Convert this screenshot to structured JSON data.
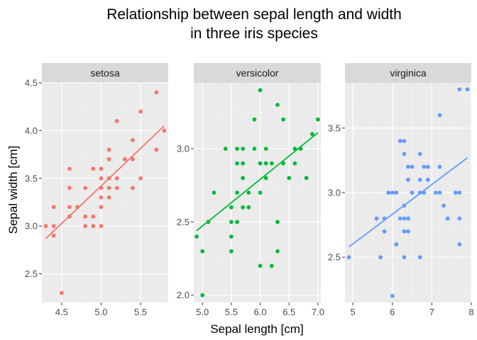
{
  "chart_data": {
    "type": "scatter",
    "title": [
      "Relationship between sepal length and width",
      "in three iris species"
    ],
    "xlabel": "Sepal length [cm]",
    "ylabel": "Sepal width [cm]",
    "grid": true,
    "legend": "none",
    "facets": [
      {
        "name": "setosa",
        "color": "#F8766D",
        "xlim": [
          4.25,
          5.85
        ],
        "ylim": [
          2.2,
          4.5
        ],
        "xticks": [
          {
            "value": 4.5,
            "label": "4.5"
          },
          {
            "value": 5.0,
            "label": "5.0"
          },
          {
            "value": 5.5,
            "label": "5.5"
          }
        ],
        "yticks": [
          {
            "value": 2.5,
            "label": "2.5"
          },
          {
            "value": 3.0,
            "label": "3.0"
          },
          {
            "value": 3.5,
            "label": "3.5"
          },
          {
            "value": 4.0,
            "label": "4.0"
          },
          {
            "value": 4.5,
            "label": "4.5"
          }
        ],
        "fit": [
          [
            4.3,
            2.87
          ],
          [
            5.8,
            4.05
          ]
        ],
        "points": [
          [
            4.3,
            3.0
          ],
          [
            4.4,
            2.9
          ],
          [
            4.4,
            3.0
          ],
          [
            4.4,
            3.2
          ],
          [
            4.5,
            2.3
          ],
          [
            4.6,
            3.1
          ],
          [
            4.6,
            3.2
          ],
          [
            4.6,
            3.4
          ],
          [
            4.6,
            3.6
          ],
          [
            4.7,
            3.2
          ],
          [
            4.8,
            3.0
          ],
          [
            4.8,
            3.1
          ],
          [
            4.8,
            3.4
          ],
          [
            4.9,
            3.0
          ],
          [
            4.9,
            3.1
          ],
          [
            4.9,
            3.6
          ],
          [
            5.0,
            3.0
          ],
          [
            5.0,
            3.2
          ],
          [
            5.0,
            3.3
          ],
          [
            5.0,
            3.4
          ],
          [
            5.0,
            3.5
          ],
          [
            5.0,
            3.6
          ],
          [
            5.1,
            3.3
          ],
          [
            5.1,
            3.4
          ],
          [
            5.1,
            3.5
          ],
          [
            5.1,
            3.7
          ],
          [
            5.1,
            3.8
          ],
          [
            5.2,
            3.4
          ],
          [
            5.2,
            3.5
          ],
          [
            5.2,
            4.1
          ],
          [
            5.3,
            3.7
          ],
          [
            5.4,
            3.4
          ],
          [
            5.4,
            3.7
          ],
          [
            5.4,
            3.9
          ],
          [
            5.5,
            3.5
          ],
          [
            5.5,
            4.2
          ],
          [
            5.7,
            3.8
          ],
          [
            5.7,
            4.4
          ],
          [
            5.8,
            4.0
          ]
        ]
      },
      {
        "name": "versicolor",
        "color": "#00BA38",
        "xlim": [
          4.85,
          7.05
        ],
        "ylim": [
          1.95,
          3.45
        ],
        "xticks": [
          {
            "value": 5.0,
            "label": "5.0"
          },
          {
            "value": 5.5,
            "label": "5.5"
          },
          {
            "value": 6.0,
            "label": "6.0"
          },
          {
            "value": 6.5,
            "label": "6.5"
          },
          {
            "value": 7.0,
            "label": "7.0"
          }
        ],
        "yticks": [
          {
            "value": 2.0,
            "label": "2.0"
          },
          {
            "value": 2.5,
            "label": "2.5"
          },
          {
            "value": 3.0,
            "label": "3.0"
          }
        ],
        "fit": [
          [
            4.9,
            2.44
          ],
          [
            7.0,
            3.11
          ]
        ],
        "points": [
          [
            4.9,
            2.4
          ],
          [
            5.0,
            2.0
          ],
          [
            5.0,
            2.3
          ],
          [
            5.1,
            2.5
          ],
          [
            5.2,
            2.7
          ],
          [
            5.4,
            3.0
          ],
          [
            5.5,
            2.3
          ],
          [
            5.5,
            2.4
          ],
          [
            5.5,
            2.5
          ],
          [
            5.5,
            2.6
          ],
          [
            5.6,
            2.5
          ],
          [
            5.6,
            2.7
          ],
          [
            5.6,
            2.9
          ],
          [
            5.6,
            3.0
          ],
          [
            5.7,
            2.6
          ],
          [
            5.7,
            2.8
          ],
          [
            5.7,
            2.9
          ],
          [
            5.7,
            3.0
          ],
          [
            5.8,
            2.6
          ],
          [
            5.8,
            2.7
          ],
          [
            5.9,
            3.0
          ],
          [
            5.9,
            3.2
          ],
          [
            6.0,
            2.2
          ],
          [
            6.0,
            2.7
          ],
          [
            6.0,
            2.9
          ],
          [
            6.0,
            3.4
          ],
          [
            6.1,
            2.8
          ],
          [
            6.1,
            2.9
          ],
          [
            6.1,
            3.0
          ],
          [
            6.2,
            2.2
          ],
          [
            6.2,
            2.9
          ],
          [
            6.3,
            2.3
          ],
          [
            6.3,
            2.5
          ],
          [
            6.3,
            3.3
          ],
          [
            6.4,
            2.9
          ],
          [
            6.4,
            3.2
          ],
          [
            6.5,
            2.8
          ],
          [
            6.6,
            2.9
          ],
          [
            6.6,
            3.0
          ],
          [
            6.7,
            3.0
          ],
          [
            6.8,
            2.8
          ],
          [
            6.9,
            3.1
          ],
          [
            7.0,
            3.2
          ]
        ]
      },
      {
        "name": "virginica",
        "color": "#619CFF",
        "xlim": [
          4.8,
          8.0
        ],
        "ylim": [
          2.15,
          3.85
        ],
        "xticks": [
          {
            "value": 5,
            "label": "5"
          },
          {
            "value": 6,
            "label": "6"
          },
          {
            "value": 7,
            "label": "7"
          },
          {
            "value": 8,
            "label": "8"
          }
        ],
        "yticks": [
          {
            "value": 2.5,
            "label": "2.5"
          },
          {
            "value": 3.0,
            "label": "3.0"
          },
          {
            "value": 3.5,
            "label": "3.5"
          }
        ],
        "fit": [
          [
            4.9,
            2.58
          ],
          [
            7.9,
            3.27
          ]
        ],
        "points": [
          [
            4.9,
            2.5
          ],
          [
            5.6,
            2.8
          ],
          [
            5.7,
            2.5
          ],
          [
            5.8,
            2.7
          ],
          [
            5.8,
            2.8
          ],
          [
            5.9,
            3.0
          ],
          [
            6.0,
            2.2
          ],
          [
            6.0,
            3.0
          ],
          [
            6.1,
            2.6
          ],
          [
            6.1,
            3.0
          ],
          [
            6.2,
            2.8
          ],
          [
            6.2,
            3.4
          ],
          [
            6.3,
            2.5
          ],
          [
            6.3,
            2.7
          ],
          [
            6.3,
            2.8
          ],
          [
            6.3,
            2.9
          ],
          [
            6.3,
            3.3
          ],
          [
            6.3,
            3.4
          ],
          [
            6.4,
            2.7
          ],
          [
            6.4,
            2.8
          ],
          [
            6.4,
            3.1
          ],
          [
            6.4,
            3.2
          ],
          [
            6.5,
            3.0
          ],
          [
            6.5,
            3.2
          ],
          [
            6.7,
            2.5
          ],
          [
            6.7,
            3.0
          ],
          [
            6.7,
            3.1
          ],
          [
            6.7,
            3.3
          ],
          [
            6.8,
            3.0
          ],
          [
            6.8,
            3.2
          ],
          [
            6.9,
            3.1
          ],
          [
            6.9,
            3.2
          ],
          [
            7.1,
            3.0
          ],
          [
            7.2,
            3.0
          ],
          [
            7.2,
            3.2
          ],
          [
            7.2,
            3.6
          ],
          [
            7.3,
            2.9
          ],
          [
            7.4,
            2.8
          ],
          [
            7.6,
            3.0
          ],
          [
            7.7,
            2.6
          ],
          [
            7.7,
            2.8
          ],
          [
            7.7,
            3.0
          ],
          [
            7.7,
            3.8
          ],
          [
            7.9,
            3.8
          ]
        ]
      }
    ]
  }
}
